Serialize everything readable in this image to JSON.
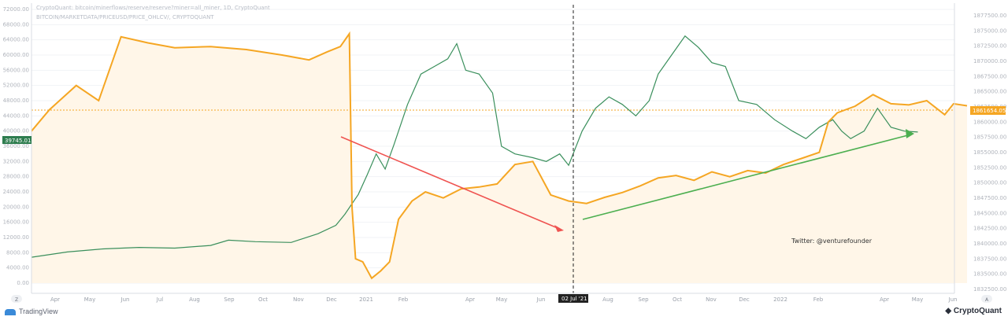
{
  "header": {
    "line1": "CryptoQuant: bitcoin/minerflows/reserve/reserve?miner=all_miner, 1D, CryptoQuant",
    "line2": "BITCOIN/MARKETDATA/PRICEUSD/PRICE_OHLCV/, CRYPTOQUANT"
  },
  "annotation": "Twitter: @venturefounder",
  "crosshair_label": "02 Jul '21",
  "price_label": "39745.01",
  "reserve_label": "1861654.05",
  "pane_button_left": "Z",
  "pane_button_right": "A",
  "footer": {
    "left_brand": "TradingView",
    "right_brand": "CryptoQuant"
  },
  "colors": {
    "price_up": "#3a8f5c",
    "price_down": "#7a1f1f",
    "reserve": "#f5a623",
    "downtrend": "#ef5350",
    "uptrend": "#4caf50",
    "crosshair": "#222222"
  },
  "chart_data": {
    "type": "line",
    "x_ticks": [
      "Apr",
      "May",
      "Jun",
      "Jul",
      "Aug",
      "Sep",
      "Oct",
      "Nov",
      "Dec",
      "2021",
      "Feb",
      "Apr",
      "May",
      "Jun",
      "02 Jul '21",
      "Aug",
      "Sep",
      "Oct",
      "Nov",
      "Dec",
      "2022",
      "Feb",
      "Apr",
      "May",
      "Jun"
    ],
    "y_left_ticks": [
      "72000.00",
      "68000.00",
      "64000.00",
      "60000.00",
      "56000.00",
      "52000.00",
      "48000.00",
      "44000.00",
      "40000.00",
      "36000.00",
      "32000.00",
      "28000.00",
      "24000.00",
      "20000.00",
      "16000.00",
      "12000.00",
      "8000.00",
      "4000.00",
      "0.00"
    ],
    "y_right_ticks": [
      "1877500.00",
      "1875000.00",
      "1872500.00",
      "1870000.00",
      "1867500.00",
      "1865000.00",
      "1862500.00",
      "1860000.00",
      "1857500.00",
      "1855000.00",
      "1852500.00",
      "1850000.00",
      "1847500.00",
      "1845000.00",
      "1842500.00",
      "1840000.00",
      "1837500.00",
      "1835000.00",
      "1832500.00"
    ],
    "ylim_left": [
      0,
      72000
    ],
    "ylim_right": [
      1832500,
      1877500
    ],
    "series": [
      {
        "axis": "left",
        "values": [
          [
            0.0,
            6800
          ],
          [
            0.04,
            8200
          ],
          [
            0.08,
            9000
          ],
          [
            0.12,
            9400
          ],
          [
            0.16,
            9200
          ],
          [
            0.2,
            9900
          ],
          [
            0.22,
            11300
          ],
          [
            0.25,
            10900
          ],
          [
            0.29,
            10700
          ],
          [
            0.32,
            13000
          ],
          [
            0.34,
            15200
          ],
          [
            0.35,
            18100
          ],
          [
            0.365,
            23300
          ],
          [
            0.375,
            28500
          ],
          [
            0.385,
            34000
          ],
          [
            0.395,
            30000
          ],
          [
            0.405,
            36500
          ],
          [
            0.42,
            47000
          ],
          [
            0.435,
            55000
          ],
          [
            0.45,
            57000
          ],
          [
            0.465,
            59000
          ],
          [
            0.475,
            63000
          ],
          [
            0.485,
            56000
          ],
          [
            0.5,
            55000
          ],
          [
            0.515,
            50000
          ],
          [
            0.525,
            36000
          ],
          [
            0.54,
            34000
          ],
          [
            0.56,
            33000
          ],
          [
            0.575,
            32000
          ],
          [
            0.59,
            34000
          ],
          [
            0.6,
            31000
          ],
          [
            0.615,
            40000
          ],
          [
            0.63,
            46000
          ],
          [
            0.645,
            49000
          ],
          [
            0.66,
            47000
          ],
          [
            0.675,
            44000
          ],
          [
            0.69,
            48000
          ],
          [
            0.7,
            55000
          ],
          [
            0.715,
            60000
          ],
          [
            0.73,
            65000
          ],
          [
            0.745,
            62000
          ],
          [
            0.76,
            58000
          ],
          [
            0.775,
            57000
          ],
          [
            0.79,
            48000
          ],
          [
            0.81,
            47000
          ],
          [
            0.83,
            43000
          ],
          [
            0.85,
            40000
          ],
          [
            0.865,
            38000
          ],
          [
            0.88,
            41000
          ],
          [
            0.895,
            43000
          ],
          [
            0.905,
            40000
          ],
          [
            0.915,
            38000
          ],
          [
            0.93,
            40000
          ],
          [
            0.945,
            46000
          ],
          [
            0.96,
            41000
          ],
          [
            0.975,
            40000
          ],
          [
            0.99,
            39745
          ]
        ]
      },
      {
        "axis": "right",
        "values": [
          [
            0.0,
            1857500
          ],
          [
            0.02,
            1861000
          ],
          [
            0.05,
            1865000
          ],
          [
            0.075,
            1862500
          ],
          [
            0.1,
            1873000
          ],
          [
            0.13,
            1872000
          ],
          [
            0.16,
            1871200
          ],
          [
            0.2,
            1871400
          ],
          [
            0.24,
            1870900
          ],
          [
            0.28,
            1870000
          ],
          [
            0.31,
            1869200
          ],
          [
            0.33,
            1870500
          ],
          [
            0.345,
            1871400
          ],
          [
            0.355,
            1873500
          ],
          [
            0.358,
            1845000
          ],
          [
            0.362,
            1836500
          ],
          [
            0.37,
            1836000
          ],
          [
            0.38,
            1833300
          ],
          [
            0.39,
            1834500
          ],
          [
            0.4,
            1836000
          ],
          [
            0.41,
            1843000
          ],
          [
            0.425,
            1846000
          ],
          [
            0.44,
            1847500
          ],
          [
            0.46,
            1846500
          ],
          [
            0.48,
            1848000
          ],
          [
            0.5,
            1848300
          ],
          [
            0.52,
            1848800
          ],
          [
            0.54,
            1852000
          ],
          [
            0.56,
            1852500
          ],
          [
            0.58,
            1847000
          ],
          [
            0.6,
            1846000
          ],
          [
            0.62,
            1845600
          ],
          [
            0.64,
            1846600
          ],
          [
            0.66,
            1847400
          ],
          [
            0.68,
            1848500
          ],
          [
            0.7,
            1849800
          ],
          [
            0.72,
            1850200
          ],
          [
            0.74,
            1849400
          ],
          [
            0.76,
            1850800
          ],
          [
            0.78,
            1850000
          ],
          [
            0.8,
            1851000
          ],
          [
            0.82,
            1850600
          ],
          [
            0.84,
            1852000
          ],
          [
            0.86,
            1853000
          ],
          [
            0.88,
            1854000
          ],
          [
            0.89,
            1859000
          ],
          [
            0.9,
            1860500
          ],
          [
            0.92,
            1861600
          ],
          [
            0.94,
            1863500
          ],
          [
            0.96,
            1862000
          ],
          [
            0.98,
            1861800
          ],
          [
            1.0,
            1862500
          ],
          [
            1.02,
            1860200
          ],
          [
            1.03,
            1862000
          ],
          [
            1.045,
            1861654
          ]
        ]
      }
    ]
  }
}
